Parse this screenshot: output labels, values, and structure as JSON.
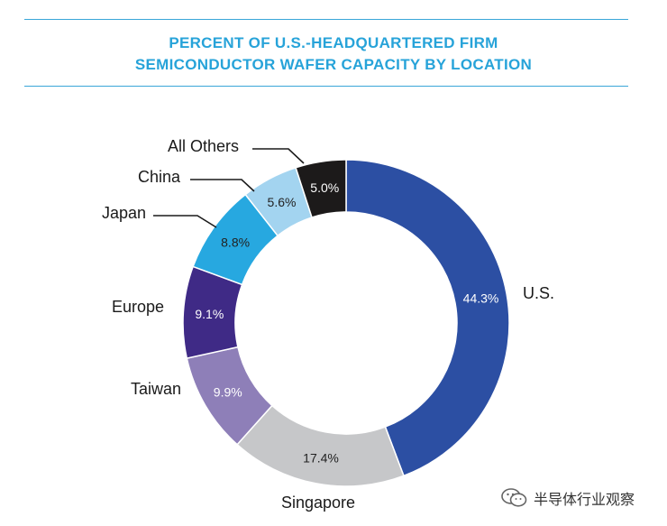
{
  "title": {
    "line1": "PERCENT OF U.S.-HEADQUARTERED FIRM",
    "line2": "SEMICONDUCTOR WAFER CAPACITY BY LOCATION"
  },
  "chart_data": {
    "type": "pie",
    "variant": "donut",
    "title": "PERCENT OF U.S.-HEADQUARTERED FIRM SEMICONDUCTOR WAFER CAPACITY BY LOCATION",
    "categories": [
      "U.S.",
      "Singapore",
      "Taiwan",
      "Europe",
      "Japan",
      "China",
      "All Others"
    ],
    "values": [
      44.3,
      17.4,
      9.9,
      9.1,
      8.8,
      5.6,
      5.0
    ],
    "value_labels": [
      "44.3%",
      "17.4%",
      "9.9%",
      "9.1%",
      "8.8%",
      "5.6%",
      "5.0%"
    ],
    "colors": [
      "#2c4fa3",
      "#c6c7c9",
      "#8e7fb8",
      "#3f2a86",
      "#27a8e0",
      "#a3d4f0",
      "#1c1a1a"
    ],
    "value_label_colors": [
      "#ffffff",
      "#222222",
      "#ffffff",
      "#ffffff",
      "#222222",
      "#222222",
      "#ffffff"
    ],
    "legend": "none"
  },
  "watermark": {
    "icon": "wechat-icon",
    "text": "半导体行业观察"
  }
}
